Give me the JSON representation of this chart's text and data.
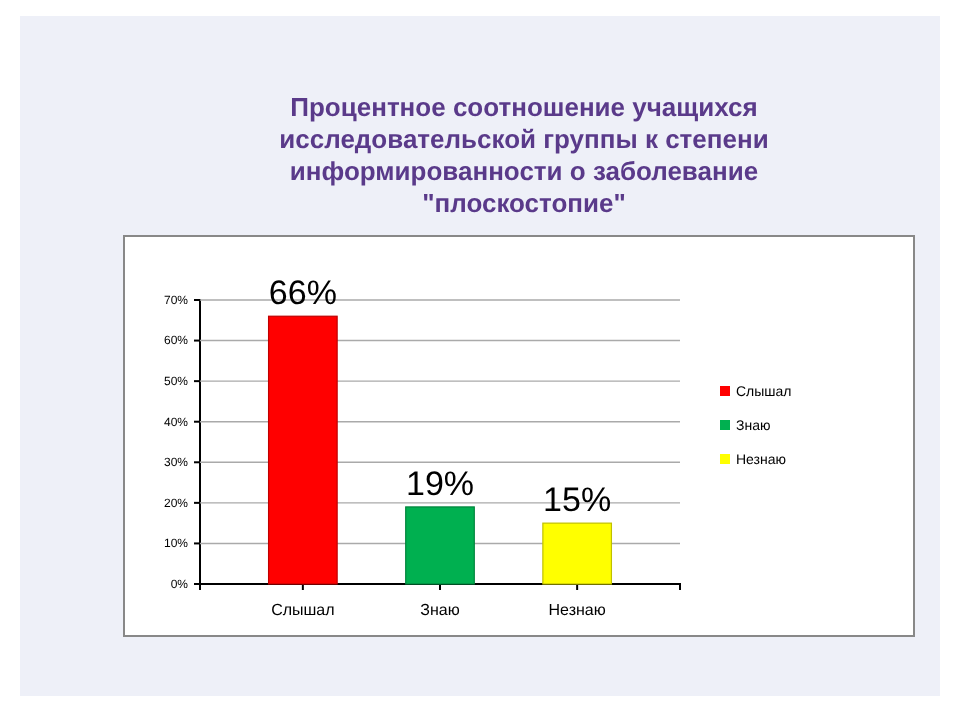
{
  "chart_data": {
    "type": "bar",
    "title": "Процентное соотношение учащихся исследовательской группы к степени информированности о заболевание \"плоскостопие\"",
    "categories": [
      "Слышал",
      "Знаю",
      "Незнаю"
    ],
    "series": [
      {
        "name": "Слышал",
        "color": "#ff0000",
        "values": [
          66,
          null,
          null
        ],
        "value_labels": [
          "66%",
          null,
          null
        ]
      },
      {
        "name": "Знаю",
        "color": "#00b050",
        "values": [
          null,
          19,
          null
        ],
        "value_labels": [
          null,
          "19%",
          null
        ]
      },
      {
        "name": "Незнаю",
        "color": "#ffff00",
        "values": [
          null,
          null,
          15
        ],
        "value_labels": [
          null,
          null,
          "15%"
        ]
      }
    ],
    "ylim": [
      0,
      70
    ],
    "yticks": [
      {
        "value": 0,
        "label": "0%"
      },
      {
        "value": 10,
        "label": "10%"
      },
      {
        "value": 20,
        "label": "20%"
      },
      {
        "value": 30,
        "label": "30%"
      },
      {
        "value": 40,
        "label": "40%"
      },
      {
        "value": 50,
        "label": "50%"
      },
      {
        "value": 60,
        "label": "60%"
      },
      {
        "value": 70,
        "label": "70%"
      }
    ],
    "grid": "y",
    "legend": "right"
  }
}
